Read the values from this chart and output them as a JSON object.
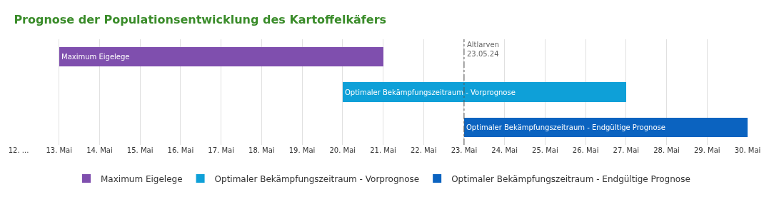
{
  "chart_data": {
    "type": "bar",
    "orientation": "horizontal",
    "title": "Prognose der Populationsentwicklung des Kartoffelkäfers",
    "categories": [
      null,
      null,
      null
    ],
    "series": [
      {
        "name": "Maximum Eigelege",
        "color": "#7f4fae",
        "values": [
          8,
          null,
          null
        ],
        "base": [
          13,
          null,
          null
        ]
      },
      {
        "name": "Optimaler Bekämpfungszeitraum - Vorprognose",
        "color": "#0ea0d8",
        "values": [
          null,
          7,
          null
        ],
        "base": [
          null,
          20,
          null
        ]
      },
      {
        "name": "Optimaler Bekämpfungszeitraum - Endgültige Prognose",
        "color": "#0b63c0",
        "values": [
          null,
          null,
          7
        ],
        "base": [
          null,
          null,
          23
        ]
      }
    ],
    "xlim": [
      12,
      30
    ],
    "xticks": [
      {
        "value": 12,
        "label": "12. ..."
      },
      {
        "value": 13,
        "label": "13. Mai"
      },
      {
        "value": 14,
        "label": "14. Mai"
      },
      {
        "value": 15,
        "label": "15. Mai"
      },
      {
        "value": 16,
        "label": "16. Mai"
      },
      {
        "value": 17,
        "label": "17. Mai"
      },
      {
        "value": 18,
        "label": "18. Mai"
      },
      {
        "value": 19,
        "label": "19. Mai"
      },
      {
        "value": 20,
        "label": "20. Mai"
      },
      {
        "value": 21,
        "label": "21. Mai"
      },
      {
        "value": 22,
        "label": "22. Mai"
      },
      {
        "value": 23,
        "label": "23. Mai"
      },
      {
        "value": 24,
        "label": "24. Mai"
      },
      {
        "value": 25,
        "label": "25. Mai"
      },
      {
        "value": 26,
        "label": "26. Mai"
      },
      {
        "value": 27,
        "label": "27. Mai"
      },
      {
        "value": 28,
        "label": "28. Mai"
      },
      {
        "value": 29,
        "label": "29. Mai"
      },
      {
        "value": 30,
        "label": "30. Mai"
      }
    ],
    "ref_lines": [
      {
        "axis": "x",
        "value": 23,
        "label": "Altlarven\n23.05.24",
        "color": "#555555",
        "line_style": "dashdot"
      }
    ],
    "grid": "x",
    "legend": "bottom",
    "tick_labels": "x"
  }
}
